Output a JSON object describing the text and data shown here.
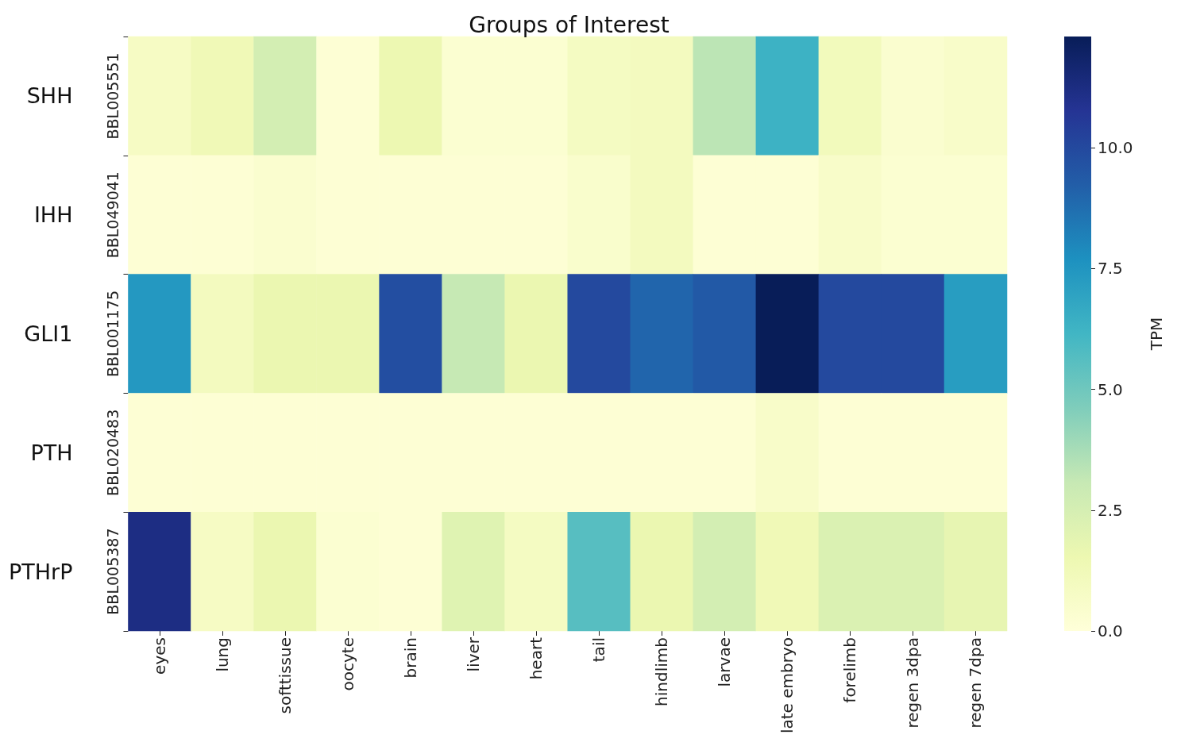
{
  "chart_data": {
    "type": "heatmap",
    "title": "Groups of Interest",
    "clabel": "TPM",
    "categories": [
      "eyes",
      "lung",
      "softtissue",
      "oocyte",
      "brain",
      "liver",
      "heart",
      "tail",
      "hindlimb",
      "larvae",
      "late embryo",
      "forelimb",
      "regen 3dpa",
      "regen 7dpa"
    ],
    "y_categories": [
      "BBL005551",
      "BBL049041",
      "BBL001175",
      "BBL020483",
      "BBL005387"
    ],
    "y2_categories": [
      "SHH",
      "IHH",
      "GLI1",
      "PTH",
      "PTHrP"
    ],
    "cells": [
      [
        0.8,
        1.3,
        2.6,
        0.2,
        1.5,
        0.3,
        0.3,
        0.9,
        1.0,
        3.3,
        6.3,
        1.1,
        0.4,
        0.6
      ],
      [
        0.2,
        0.2,
        0.4,
        0.2,
        0.2,
        0.2,
        0.2,
        0.5,
        1.0,
        0.2,
        0.2,
        0.6,
        0.3,
        0.3
      ],
      [
        7.4,
        1.0,
        1.6,
        1.6,
        9.8,
        3.1,
        1.6,
        10.0,
        9.0,
        9.4,
        12.3,
        10.0,
        10.0,
        7.2
      ],
      [
        0.2,
        0.2,
        0.2,
        0.2,
        0.2,
        0.2,
        0.2,
        0.2,
        0.2,
        0.2,
        0.6,
        0.2,
        0.2,
        0.2
      ],
      [
        11.2,
        0.8,
        1.6,
        0.3,
        0.2,
        2.1,
        0.9,
        5.6,
        1.6,
        2.6,
        1.3,
        2.3,
        2.3,
        1.8
      ]
    ],
    "clim": [
      0,
      12.3
    ],
    "cticks": [
      {
        "value": 0,
        "label": "0.0"
      },
      {
        "value": 2.5,
        "label": "2.5"
      },
      {
        "value": 5,
        "label": "5.0"
      },
      {
        "value": 7.5,
        "label": "7.5"
      },
      {
        "value": 10,
        "label": "10.0"
      }
    ]
  }
}
